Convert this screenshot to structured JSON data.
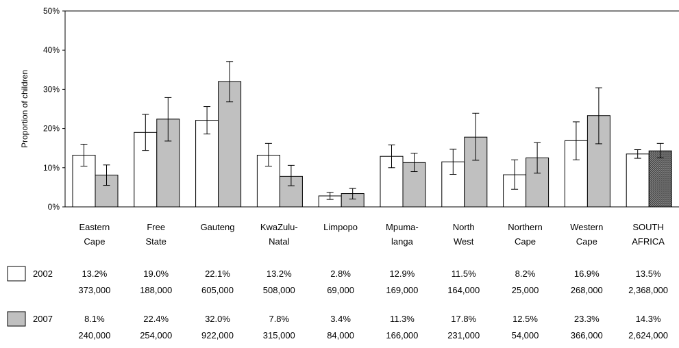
{
  "chart_data": {
    "type": "bar",
    "ylabel": "Proportion of children",
    "ylim": [
      0,
      50
    ],
    "yticks": [
      "0%",
      "10%",
      "20%",
      "30%",
      "40%",
      "50%"
    ],
    "ytick_values": [
      0,
      10,
      20,
      30,
      40,
      50
    ],
    "grid": false,
    "categories": [
      [
        "Eastern",
        "Cape"
      ],
      [
        "Free",
        "State"
      ],
      [
        "Gauteng"
      ],
      [
        "KwaZulu-",
        "Natal"
      ],
      [
        "Limpopo"
      ],
      [
        "Mpuma-",
        "langa"
      ],
      [
        "North",
        "West"
      ],
      [
        "Northern",
        "Cape"
      ],
      [
        "Western",
        "Cape"
      ],
      [
        "SOUTH",
        "AFRICA"
      ]
    ],
    "series": [
      {
        "name": "2002",
        "color": "#ffffff",
        "values": [
          13.2,
          19.0,
          22.1,
          13.2,
          2.8,
          12.9,
          11.5,
          8.2,
          16.9,
          13.5
        ],
        "error_low": [
          10.4,
          14.4,
          18.6,
          10.4,
          1.9,
          10.0,
          8.3,
          4.5,
          12.0,
          12.4
        ],
        "error_high": [
          16.0,
          23.6,
          25.6,
          16.2,
          3.7,
          15.8,
          14.7,
          12.0,
          21.7,
          14.6
        ],
        "percent_labels": [
          "13.2%",
          "19.0%",
          "22.1%",
          "13.2%",
          "2.8%",
          "12.9%",
          "11.5%",
          "8.2%",
          "16.9%",
          "13.5%"
        ],
        "counts": [
          "373,000",
          "188,000",
          "605,000",
          "508,000",
          "69,000",
          "169,000",
          "164,000",
          "25,000",
          "268,000",
          "2,368,000"
        ]
      },
      {
        "name": "2007",
        "color": "#c0c0c0",
        "last_category_pattern": "crosshatch",
        "values": [
          8.1,
          22.4,
          32.0,
          7.8,
          3.4,
          11.3,
          17.8,
          12.5,
          23.3,
          14.3
        ],
        "error_low": [
          5.5,
          16.8,
          26.8,
          5.4,
          2.0,
          9.0,
          11.9,
          8.6,
          16.1,
          12.5
        ],
        "error_high": [
          10.7,
          27.9,
          37.1,
          10.6,
          4.7,
          13.7,
          23.9,
          16.4,
          30.4,
          16.2
        ],
        "percent_labels": [
          "8.1%",
          "22.4%",
          "32.0%",
          "7.8%",
          "3.4%",
          "11.3%",
          "17.8%",
          "12.5%",
          "23.3%",
          "14.3%"
        ],
        "counts": [
          "240,000",
          "254,000",
          "922,000",
          "315,000",
          "84,000",
          "166,000",
          "231,000",
          "54,000",
          "366,000",
          "2,624,000"
        ]
      }
    ]
  }
}
